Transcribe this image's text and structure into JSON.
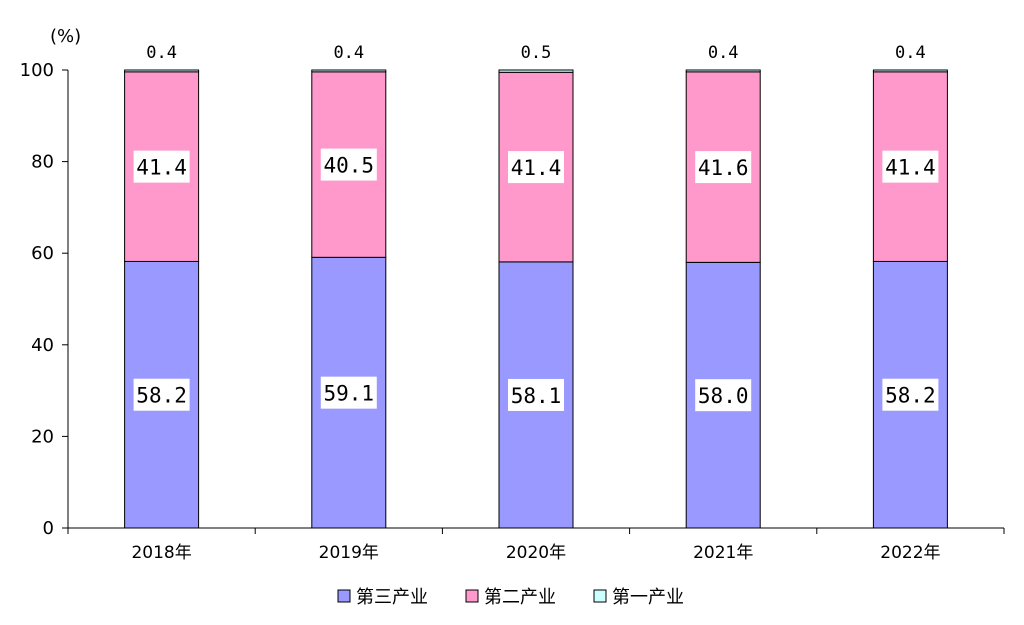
{
  "chart_data": {
    "type": "bar",
    "stacked": true,
    "unit_label": "(%)",
    "categories": [
      "2018年",
      "2019年",
      "2020年",
      "2021年",
      "2022年"
    ],
    "series": [
      {
        "name": "第三产业",
        "values": [
          58.2,
          59.1,
          58.1,
          58.0,
          58.2
        ],
        "labels": [
          "58.2",
          "59.1",
          "58.1",
          "58.0",
          "58.2"
        ],
        "color": "#9999ff"
      },
      {
        "name": "第二产业",
        "values": [
          41.4,
          40.5,
          41.4,
          41.6,
          41.4
        ],
        "labels": [
          "41.4",
          "40.5",
          "41.4",
          "41.6",
          "41.4"
        ],
        "color": "#ff99cc"
      },
      {
        "name": "第一产业",
        "values": [
          0.4,
          0.4,
          0.5,
          0.4,
          0.4
        ],
        "labels": [
          "0.4",
          "0.4",
          "0.5",
          "0.4",
          "0.4"
        ],
        "color": "#ccffff"
      }
    ],
    "yticks": [
      "0",
      "20",
      "40",
      "60",
      "80",
      "100"
    ],
    "ylim": [
      0,
      100
    ],
    "legend_position": "bottom"
  }
}
